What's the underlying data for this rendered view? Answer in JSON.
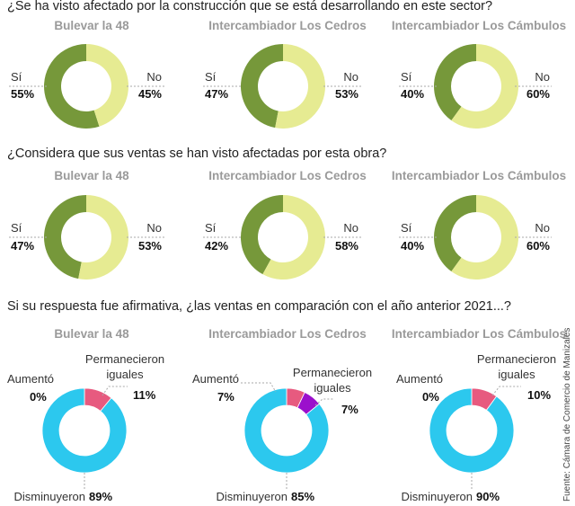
{
  "source": "Fuente: Cámara de Comercio de Manizales",
  "colors": {
    "si": "#76983a",
    "no": "#e6eb92",
    "aumento": "#e75a7f",
    "permanecieron": "#e75a7f",
    "disminuyeron": "#2cc8ee",
    "permanecieron_alt": "#9b10cc",
    "leader": "#aaaaaa"
  },
  "sections": [
    {
      "question": "¿Se ha visto afectado por la construcción que se está desarrollando en este sector?",
      "charts": [
        {
          "title": "Bulevar la 48",
          "labels": {
            "si": "Sí",
            "no": "No"
          },
          "values": {
            "si": "55%",
            "no": "45%"
          }
        },
        {
          "title": "Intercambiador Los Cedros",
          "labels": {
            "si": "Sí",
            "no": "No"
          },
          "values": {
            "si": "47%",
            "no": "53%"
          }
        },
        {
          "title": "Intercambiador Los Cámbulos",
          "labels": {
            "si": "Sí",
            "no": "No"
          },
          "values": {
            "si": "40%",
            "no": "60%"
          }
        }
      ]
    },
    {
      "question": "¿Considera que sus ventas se han visto afectadas por esta obra?",
      "charts": [
        {
          "title": "Bulevar la 48",
          "labels": {
            "si": "Sí",
            "no": "No"
          },
          "values": {
            "si": "47%",
            "no": "53%"
          }
        },
        {
          "title": "Intercambiador Los Cedros",
          "labels": {
            "si": "Sí",
            "no": "No"
          },
          "values": {
            "si": "42%",
            "no": "58%"
          }
        },
        {
          "title": "Intercambiador Los Cámbulos",
          "labels": {
            "si": "Sí",
            "no": "No"
          },
          "values": {
            "si": "40%",
            "no": "60%"
          }
        }
      ]
    },
    {
      "question": "Si su respuesta fue afirmativa, ¿las ventas en comparación con el año anterior 2021...?",
      "charts": [
        {
          "title": "Bulevar la 48",
          "labels": {
            "aumento": "Aumentó",
            "permanecieron_1": "Permanecieron",
            "permanecieron_2": "iguales",
            "disminuyeron": "Disminuyeron"
          },
          "values": {
            "aumento": "0%",
            "permanecieron": "11%",
            "disminuyeron": "89%"
          }
        },
        {
          "title": "Intercambiador Los Cedros",
          "labels": {
            "aumento": "Aumentó",
            "permanecieron_1": "Permanecieron",
            "permanecieron_2": "iguales",
            "disminuyeron": "Disminuyeron"
          },
          "values": {
            "aumento": "7%",
            "permanecieron": "7%",
            "disminuyeron": "85%"
          }
        },
        {
          "title": "Intercambiador Los Cámbulos",
          "labels": {
            "aumento": "Aumentó",
            "permanecieron_1": "Permanecieron",
            "permanecieron_2": "iguales",
            "disminuyeron": "Disminuyeron"
          },
          "values": {
            "aumento": "0%",
            "permanecieron": "10%",
            "disminuyeron": "90%"
          }
        }
      ]
    }
  ],
  "chart_data": [
    {
      "type": "pie",
      "title": "Bulevar la 48",
      "categories": [
        "Sí",
        "No"
      ],
      "values": [
        55,
        45
      ]
    },
    {
      "type": "pie",
      "title": "Intercambiador Los Cedros",
      "categories": [
        "Sí",
        "No"
      ],
      "values": [
        47,
        53
      ]
    },
    {
      "type": "pie",
      "title": "Intercambiador Los Cámbulos",
      "categories": [
        "Sí",
        "No"
      ],
      "values": [
        40,
        60
      ]
    },
    {
      "type": "pie",
      "title": "Bulevar la 48",
      "categories": [
        "Sí",
        "No"
      ],
      "values": [
        47,
        53
      ]
    },
    {
      "type": "pie",
      "title": "Intercambiador Los Cedros",
      "categories": [
        "Sí",
        "No"
      ],
      "values": [
        42,
        58
      ]
    },
    {
      "type": "pie",
      "title": "Intercambiador Los Cámbulos",
      "categories": [
        "Sí",
        "No"
      ],
      "values": [
        40,
        60
      ]
    },
    {
      "type": "pie",
      "title": "Bulevar la 48",
      "categories": [
        "Aumentó",
        "Permanecieron iguales",
        "Disminuyeron"
      ],
      "values": [
        0,
        11,
        89
      ]
    },
    {
      "type": "pie",
      "title": "Intercambiador Los Cedros",
      "categories": [
        "Aumentó",
        "Permanecieron iguales",
        "Disminuyeron"
      ],
      "values": [
        7,
        7,
        85
      ]
    },
    {
      "type": "pie",
      "title": "Intercambiador Los Cámbulos",
      "categories": [
        "Aumentó",
        "Permanecieron iguales",
        "Disminuyeron"
      ],
      "values": [
        0,
        10,
        90
      ]
    }
  ]
}
